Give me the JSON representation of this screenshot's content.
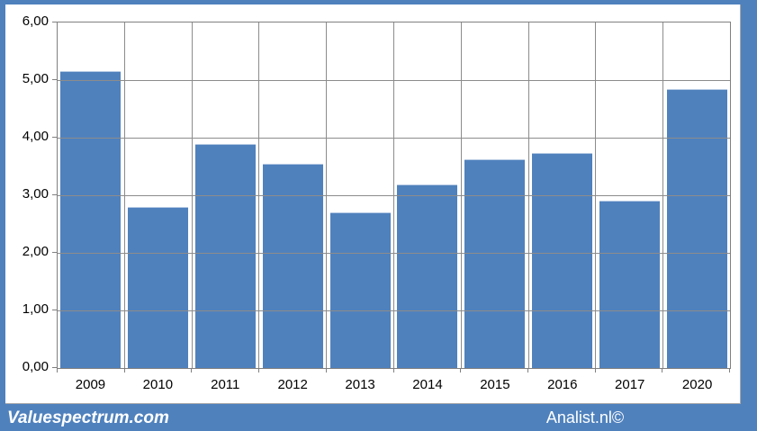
{
  "footer": {
    "left_text": "Valuespectrum.com",
    "right_text": "Analist.nl©"
  },
  "colors": {
    "frame_blue": "#4f81bd",
    "bar_blue": "#4f81bd",
    "grid_gray": "#8c8c8c",
    "plot_border_gray": "#808080",
    "banner_text": "#ffffff",
    "axis_text": "#000000",
    "plot_background": "#ffffff"
  },
  "chart_data": {
    "type": "bar",
    "title": "",
    "xlabel": "",
    "ylabel": "",
    "categories": [
      "2009",
      "2010",
      "2011",
      "2012",
      "2013",
      "2014",
      "2015",
      "2016",
      "2017",
      "2020"
    ],
    "values": [
      5.16,
      2.79,
      3.89,
      3.55,
      2.71,
      3.19,
      3.62,
      3.73,
      2.91,
      4.85
    ],
    "ylim": [
      0,
      6
    ],
    "y_tick_step": 1,
    "y_tick_labels_top_to_bottom": [
      "6,00",
      "5,00",
      "4,00",
      "3,00",
      "2,00",
      "1,00",
      "0,00"
    ],
    "grid": "horizontal and vertical major gridlines, gray",
    "legend_position": "none",
    "decimal_separator": "comma"
  }
}
